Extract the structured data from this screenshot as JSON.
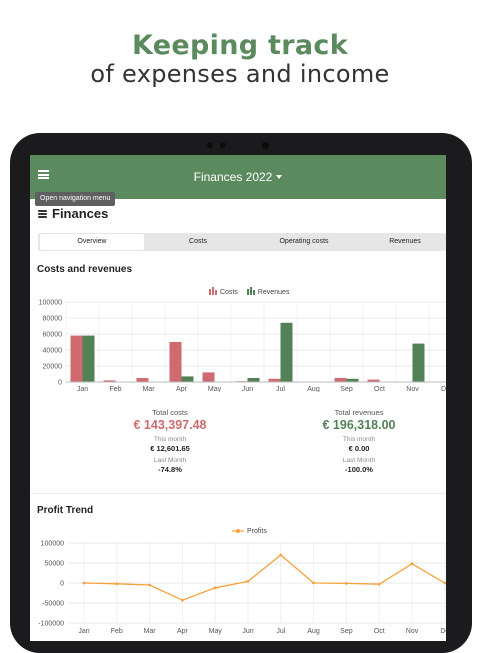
{
  "promo": {
    "title": "Keeping track",
    "subtitle": "of expenses and income"
  },
  "appbar": {
    "title": "Finances 2022",
    "menu_icon": "hamburger-menu-icon",
    "dropdown_icon": "caret-down-icon"
  },
  "tooltip": "Open navigation menu",
  "page": {
    "title": "Finances",
    "icon": "coins-icon"
  },
  "tabs": [
    {
      "label": "Overview",
      "active": true
    },
    {
      "label": "Costs",
      "active": false
    },
    {
      "label": "Operating costs",
      "active": false
    },
    {
      "label": "Revenues",
      "active": false
    }
  ],
  "colors": {
    "brand": "#5b8a5e",
    "costs": "#cf6a6e",
    "revenues": "#528156",
    "profits": "#f4a23c"
  },
  "costs_revenues": {
    "title": "Costs and revenues",
    "legend": {
      "costs": "Costs",
      "revenues": "Revenues"
    }
  },
  "stats": {
    "costs": {
      "label": "Total costs",
      "value": "€ 143,397.48",
      "this_month_label": "This month",
      "this_month": "€ 12,601.65",
      "last_month_label": "Last Month",
      "last_month": "-74.8%"
    },
    "revenues": {
      "label": "Total revenues",
      "value": "€ 196,318.00",
      "this_month_label": "This month",
      "this_month": "€ 0.00",
      "last_month_label": "Last Month",
      "last_month": "-100.0%"
    }
  },
  "profit": {
    "title": "Profit Trend",
    "legend": "Profits"
  },
  "chart_data": [
    {
      "type": "bar",
      "title": "Costs and revenues",
      "categories": [
        "Jan",
        "Feb",
        "Mar",
        "Apr",
        "May",
        "Jun",
        "Jul",
        "Aug",
        "Sep",
        "Oct",
        "Nov",
        "De"
      ],
      "series": [
        {
          "name": "Costs",
          "values": [
            58000,
            2000,
            5000,
            50000,
            12000,
            1000,
            4000,
            0,
            5000,
            3000,
            0,
            0
          ]
        },
        {
          "name": "Revenues",
          "values": [
            58000,
            0,
            0,
            7000,
            0,
            5000,
            74000,
            0,
            4000,
            0,
            48000,
            0
          ]
        }
      ],
      "yticks": [
        "100000",
        "80000",
        "60000",
        "40000",
        "20000",
        "0"
      ],
      "ylim": [
        0,
        100000
      ],
      "grid": true,
      "legend_position": "top-center"
    },
    {
      "type": "line",
      "title": "Profit Trend",
      "categories": [
        "Jan",
        "Feb",
        "Mar",
        "Apr",
        "May",
        "Jun",
        "Jul",
        "Aug",
        "Sep",
        "Oct",
        "Nov",
        "De"
      ],
      "series": [
        {
          "name": "Profits",
          "values": [
            0,
            -2000,
            -5000,
            -43000,
            -12000,
            4000,
            70000,
            0,
            -1000,
            -3000,
            48000,
            0
          ]
        }
      ],
      "yticks": [
        "100000",
        "50000",
        "0",
        "-50000",
        "-100000"
      ],
      "ylim": [
        -100000,
        100000
      ],
      "grid": true,
      "legend_position": "top-center"
    }
  ]
}
